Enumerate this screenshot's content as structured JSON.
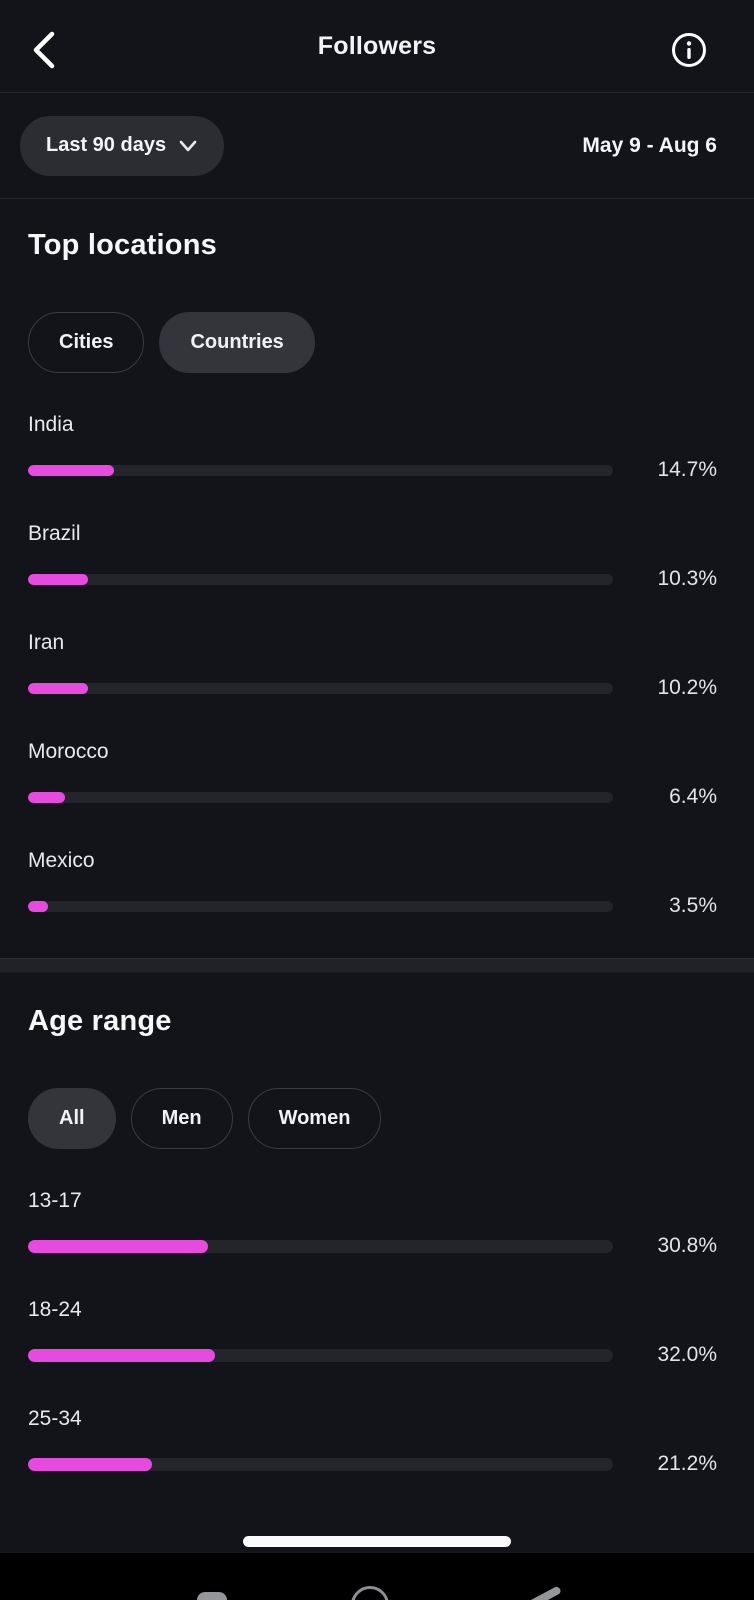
{
  "header": {
    "title": "Followers"
  },
  "filter": {
    "range_label": "Last 90 days",
    "date_range": "May 9 - Aug 6"
  },
  "colors": {
    "accent": "#e74ade",
    "track": "#23252a",
    "bg": "#13141a"
  },
  "top_locations": {
    "title": "Top locations",
    "tabs": [
      {
        "label": "Cities",
        "selected": false
      },
      {
        "label": "Countries",
        "selected": true
      }
    ],
    "rows": [
      {
        "label": "India",
        "value": 14.7,
        "pct_label": "14.7%"
      },
      {
        "label": "Brazil",
        "value": 10.3,
        "pct_label": "10.3%"
      },
      {
        "label": "Iran",
        "value": 10.2,
        "pct_label": "10.2%"
      },
      {
        "label": "Morocco",
        "value": 6.4,
        "pct_label": "6.4%"
      },
      {
        "label": "Mexico",
        "value": 3.5,
        "pct_label": "3.5%"
      }
    ]
  },
  "age_range": {
    "title": "Age range",
    "tabs": [
      {
        "label": "All",
        "selected": true
      },
      {
        "label": "Men",
        "selected": false
      },
      {
        "label": "Women",
        "selected": false
      }
    ],
    "rows": [
      {
        "label": "13-17",
        "value": 30.8,
        "pct_label": "30.8%"
      },
      {
        "label": "18-24",
        "value": 32.0,
        "pct_label": "32.0%"
      },
      {
        "label": "25-34",
        "value": 21.2,
        "pct_label": "21.2%"
      }
    ]
  },
  "chart_data": [
    {
      "type": "bar",
      "title": "Top locations (Countries)",
      "categories": [
        "India",
        "Brazil",
        "Iran",
        "Morocco",
        "Mexico"
      ],
      "values": [
        14.7,
        10.3,
        10.2,
        6.4,
        3.5
      ],
      "value_unit": "%",
      "xlim": [
        0,
        100
      ],
      "orientation": "horizontal"
    },
    {
      "type": "bar",
      "title": "Age range (All)",
      "categories": [
        "13-17",
        "18-24",
        "25-34"
      ],
      "values": [
        30.8,
        32.0,
        21.2
      ],
      "value_unit": "%",
      "xlim": [
        0,
        100
      ],
      "orientation": "horizontal"
    }
  ]
}
